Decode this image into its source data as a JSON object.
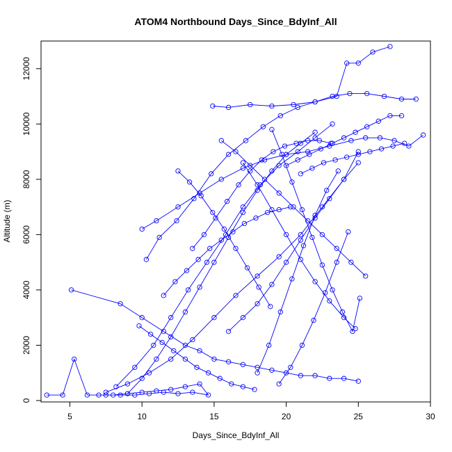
{
  "chart_data": {
    "type": "line",
    "title": "ATOM4 Northbound Days_Since_BdyInf_All",
    "xlabel": "Days_Since_BdyInf_All",
    "ylabel": "Altitude (m)",
    "xlim": [
      3.0,
      30.0
    ],
    "ylim": [
      -50,
      13000
    ],
    "xticks": [
      5,
      10,
      15,
      20,
      25,
      30
    ],
    "yticks": [
      0,
      2000,
      4000,
      6000,
      8000,
      10000,
      12000
    ],
    "marker": "open-circle",
    "color": "#0000ff",
    "grid": false,
    "legend": "none",
    "series": [
      {
        "x": [
          3.4,
          4.5,
          5.3,
          6.2,
          7.0,
          8.0,
          9.0,
          10.0,
          11.0,
          12.0,
          13.0,
          14.0,
          14.6,
          13.5,
          12.5,
          11.5,
          10.5,
          9.5,
          8.5,
          7.5
        ],
        "y": [
          200,
          200,
          1500,
          200,
          200,
          200,
          250,
          300,
          350,
          400,
          500,
          600,
          200,
          300,
          250,
          300,
          250,
          200,
          200,
          200
        ]
      },
      {
        "x": [
          5.1,
          8.5,
          10.0,
          11.5,
          13.0,
          14.0,
          15.0,
          16.0,
          17.0,
          18.0,
          19.0,
          20.0,
          21.0,
          22.0,
          23.0,
          24.0,
          25.0
        ],
        "y": [
          4000,
          3500,
          3000,
          2500,
          2000,
          1800,
          1500,
          1400,
          1300,
          1200,
          1100,
          1000,
          900,
          900,
          800,
          800,
          700
        ]
      },
      {
        "x": [
          7.5,
          9.0,
          10.5,
          12.0,
          13.5,
          15.0,
          16.5,
          18.0,
          19.5,
          21.0,
          22.5,
          24.0,
          25.0
        ],
        "y": [
          300,
          600,
          1000,
          1500,
          2200,
          3000,
          3800,
          4500,
          5200,
          6000,
          7000,
          8000,
          9000
        ]
      },
      {
        "x": [
          8.2,
          9.5,
          10.8,
          12.0,
          13.2,
          14.5,
          15.8,
          17.0,
          18.2,
          19.5,
          20.8,
          22.0,
          23.2
        ],
        "y": [
          500,
          1200,
          2000,
          3000,
          4000,
          5000,
          6000,
          7000,
          7800,
          8500,
          9000,
          9500,
          10000
        ]
      },
      {
        "x": [
          9.0,
          10.0,
          11.0,
          12.0,
          13.0,
          14.0,
          15.0,
          16.0,
          17.0,
          18.0,
          19.0,
          20.0,
          21.0,
          22.0
        ],
        "y": [
          250,
          800,
          1500,
          2300,
          3200,
          4100,
          5000,
          5900,
          6800,
          7600,
          8300,
          8900,
          9300,
          9700
        ]
      },
      {
        "x": [
          10.0,
          11.0,
          12.5,
          14.0,
          15.5,
          17.0,
          18.5,
          20.0,
          21.5,
          23.0,
          24.5,
          25.5,
          26.5,
          27.5,
          28.5,
          29.5
        ],
        "y": [
          6200,
          6500,
          7000,
          7500,
          8000,
          8400,
          8700,
          8900,
          9000,
          9200,
          9400,
          9500,
          9500,
          9400,
          9200,
          9600
        ]
      },
      {
        "x": [
          10.3,
          11.2,
          12.4,
          13.6,
          14.8,
          16.0,
          17.2,
          18.4,
          19.6,
          20.8,
          22.0,
          23.2,
          24.4,
          25.6,
          26.8,
          28.0,
          29.0
        ],
        "y": [
          5100,
          5900,
          6500,
          7300,
          8200,
          8900,
          9400,
          9900,
          10300,
          10600,
          10800,
          11000,
          11100,
          11100,
          11000,
          10900,
          10900
        ]
      },
      {
        "x": [
          14.9,
          16.0,
          17.5,
          19.0,
          20.5,
          22.0,
          23.5,
          24.2,
          25.0,
          26.0,
          27.2
        ],
        "y": [
          10650,
          10600,
          10700,
          10650,
          10700,
          10800,
          11000,
          12200,
          12200,
          12600,
          12800
        ]
      },
      {
        "x": [
          15.5,
          16.5,
          17.5,
          18.5,
          19.5,
          20.5,
          21.5,
          22.5,
          23.5,
          24.5,
          25.5
        ],
        "y": [
          9400,
          9000,
          8500,
          8000,
          7500,
          7000,
          6500,
          6000,
          5500,
          5000,
          4500
        ]
      },
      {
        "x": [
          16.0,
          17.0,
          18.0,
          19.0,
          20.0,
          21.0,
          22.0,
          23.0,
          24.0,
          25.0
        ],
        "y": [
          2500,
          3000,
          3500,
          4200,
          5000,
          5800,
          6600,
          7300,
          8000,
          8600
        ]
      },
      {
        "x": [
          17.0,
          18.0,
          19.0,
          20.0,
          21.0,
          22.0,
          23.0,
          24.0,
          24.8
        ],
        "y": [
          8600,
          7800,
          6900,
          6000,
          5100,
          4300,
          3600,
          3000,
          2600
        ]
      },
      {
        "x": [
          18.0,
          18.8,
          19.6,
          20.4,
          21.2,
          22.0,
          22.8,
          23.6
        ],
        "y": [
          1000,
          2000,
          3200,
          4400,
          5600,
          6700,
          7600,
          8300
        ]
      },
      {
        "x": [
          19.0,
          19.7,
          20.4,
          21.1,
          21.8,
          22.5,
          23.2,
          23.9,
          24.6,
          25.1
        ],
        "y": [
          9800,
          8900,
          7900,
          6900,
          5900,
          4900,
          4000,
          3200,
          2500,
          3700
        ]
      },
      {
        "x": [
          19.5,
          20.3,
          21.1,
          21.9,
          22.7,
          23.5,
          24.3
        ],
        "y": [
          600,
          1200,
          2000,
          2900,
          3900,
          5000,
          6100
        ]
      },
      {
        "x": [
          20.0,
          20.8,
          21.6,
          22.4,
          23.2,
          24.0,
          24.8,
          25.6,
          26.4,
          27.2,
          28.0
        ],
        "y": [
          8500,
          8700,
          8900,
          9100,
          9300,
          9500,
          9700,
          9900,
          10100,
          10300,
          10300
        ]
      },
      {
        "x": [
          11.5,
          12.3,
          13.1,
          13.9,
          14.7,
          15.5,
          16.3,
          17.1,
          17.9,
          18.7,
          19.5,
          20.3
        ],
        "y": [
          3800,
          4300,
          4700,
          5100,
          5500,
          5800,
          6100,
          6400,
          6600,
          6800,
          6900,
          7000
        ]
      },
      {
        "x": [
          12.5,
          13.3,
          14.1,
          14.9,
          15.7,
          16.5,
          17.3,
          18.1,
          18.9
        ],
        "y": [
          8300,
          7900,
          7400,
          6800,
          6200,
          5500,
          4800,
          4100,
          3400
        ]
      },
      {
        "x": [
          9.8,
          10.6,
          11.4,
          12.2,
          13.0,
          13.8,
          14.6,
          15.4,
          16.2,
          17.0,
          17.8
        ],
        "y": [
          2700,
          2400,
          2100,
          1800,
          1500,
          1200,
          1000,
          800,
          600,
          500,
          400
        ]
      },
      {
        "x": [
          13.5,
          14.3,
          15.1,
          15.9,
          16.7,
          17.5,
          18.3,
          19.1,
          19.9,
          20.7,
          21.5,
          22.3,
          23.1
        ],
        "y": [
          5500,
          6000,
          6600,
          7200,
          7800,
          8300,
          8700,
          9000,
          9200,
          9300,
          9400,
          9400,
          9300
        ]
      },
      {
        "x": [
          21.0,
          21.8,
          22.6,
          23.4,
          24.2,
          25.0,
          25.8,
          26.6,
          27.4,
          28.2
        ],
        "y": [
          8200,
          8400,
          8600,
          8700,
          8800,
          8900,
          9000,
          9100,
          9200,
          9300
        ]
      }
    ]
  }
}
